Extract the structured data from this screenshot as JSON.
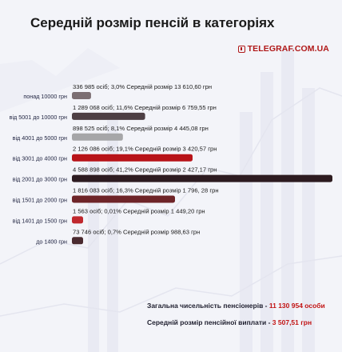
{
  "title": "Середній розмір пенсій в категоріях",
  "brand": "TELEGRAF.COM.UA",
  "chart_data": {
    "type": "bar",
    "orientation": "horizontal",
    "categories": [
      "понад 10000 грн",
      "від 5001 до 10000 грн",
      "від 4001 до 5000 грн",
      "від 3001 до 4000 грн",
      "від 2001 до 3000 грн",
      "від 1501 до 2000 грн",
      "від 1401 до 1500 грн",
      "до 1400 грн"
    ],
    "values": [
      336985,
      1289068,
      898525,
      2126086,
      4588898,
      1816083,
      1563,
      73746
    ],
    "labels": [
      "336 985 осіб; 3,0% Середній розмір 13 610,60 грн",
      "1 289 068  осіб; 11,6% Середній розмір 6 759,55 грн",
      "898 525 осіб; 8,1% Середній розмір 4 445,08 грн",
      "2 126 086 осіб; 19,1% Середній розмір 3 420,57 грн",
      "4 588 898 осіб; 41,2% Середній розмір 2 427,17 грн",
      "1 816 083 осіб; 16,3% Середній розмір 1 796, 28 грн",
      "1 563 осіб; 0,01% Середній розмір 1 449,20 грн",
      "73 746 осіб; 0,7% Середній розмір 988,63 грн"
    ],
    "colors": [
      "#7b6e72",
      "#4d3f44",
      "#a6a6a8",
      "#b81318",
      "#2d1b20",
      "#6e2428",
      "#c0282e",
      "#4a2a2f"
    ],
    "title": "Середній розмір пенсій в категоріях",
    "xlabel": "",
    "ylabel": ""
  },
  "footer": {
    "total_label": "Загальна чисельність пенсіонерів  - ",
    "total_value": " 11 130 954 особи",
    "avg_label": "Середній розмір пенсійної виплати - ",
    "avg_value": "3 507,51 грн"
  }
}
